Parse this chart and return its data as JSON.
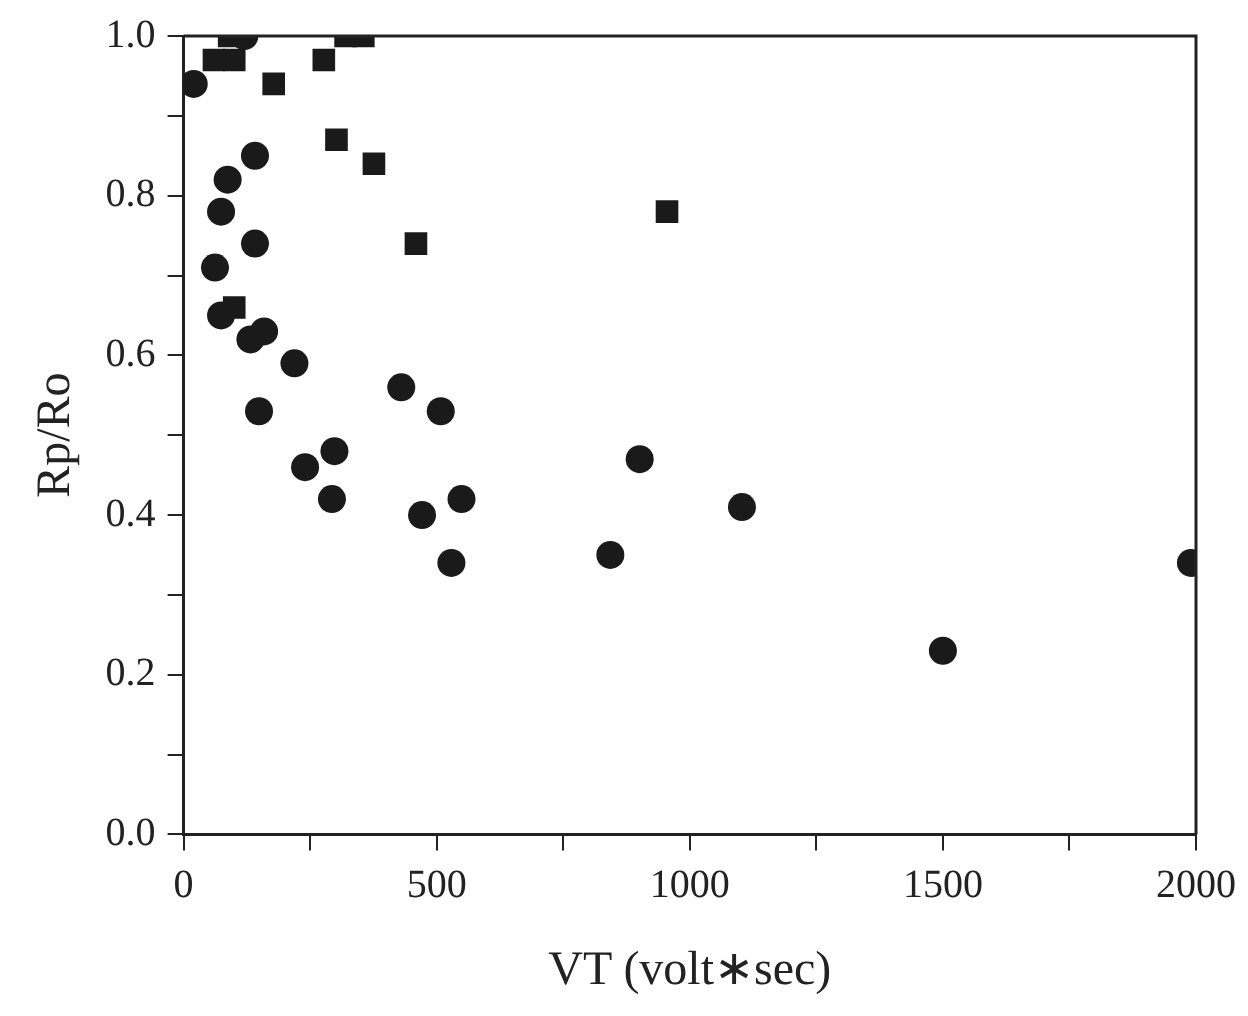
{
  "chart_data": {
    "type": "scatter",
    "xlabel": "VT (volt∗sec)",
    "ylabel": "Rp/Ro",
    "xlim": [
      0,
      2000
    ],
    "ylim": [
      0,
      1
    ],
    "xticks": [
      0,
      {
        "value": 250,
        "label": null
      },
      500,
      {
        "value": 750,
        "label": null
      },
      1000,
      {
        "value": 1250,
        "label": null
      },
      1500,
      {
        "value": 1750,
        "label": null
      },
      2000
    ],
    "yticks": [
      {
        "value": 0,
        "label": "0.0"
      },
      {
        "value": 0.1,
        "label": null
      },
      {
        "value": 0.2,
        "label": "0.2"
      },
      {
        "value": 0.3,
        "label": null
      },
      {
        "value": 0.4,
        "label": "0.4"
      },
      {
        "value": 0.5,
        "label": null
      },
      {
        "value": 0.6,
        "label": "0.6"
      },
      {
        "value": 0.7,
        "label": null
      },
      {
        "value": 0.8,
        "label": "0.8"
      },
      {
        "value": 0.9,
        "label": null
      },
      {
        "value": 1,
        "label": "1.0"
      }
    ],
    "grid": false,
    "legend": false,
    "series": [
      {
        "color": "#1a1a1a",
        "marker": "circle",
        "x": [
          20,
          120,
          141,
          87,
          74,
          141,
          62,
          74,
          132,
          159,
          219,
          430,
          149,
          508,
          240,
          298,
          293,
          471,
          549,
          529,
          843,
          901,
          1103,
          1500,
          1990
        ],
        "values": [
          0.94,
          1.0,
          0.85,
          0.82,
          0.78,
          0.74,
          0.71,
          0.65,
          0.62,
          0.63,
          0.59,
          0.56,
          0.53,
          0.53,
          0.46,
          0.48,
          0.42,
          0.4,
          0.42,
          0.34,
          0.35,
          0.47,
          0.41,
          0.23,
          0.34
        ]
      },
      {
        "color": "#1a1a1a",
        "marker": "square",
        "x": [
          60,
          100,
          90,
          320,
          355,
          277,
          178,
          302,
          376,
          459,
          955,
          100
        ],
        "values": [
          0.97,
          0.97,
          1.0,
          1.0,
          1.0,
          0.97,
          0.94,
          0.87,
          0.84,
          0.74,
          0.78,
          0.66
        ]
      }
    ]
  }
}
